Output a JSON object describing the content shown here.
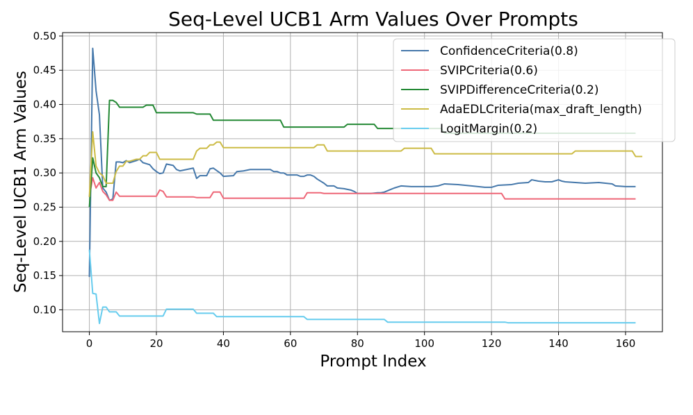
{
  "chart_data": {
    "type": "line",
    "title": "Seq-Level UCB1 Arm Values Over Prompts",
    "xlabel": "Prompt Index",
    "ylabel": "Seq-Level UCB1 Arm Values",
    "xlim": [
      -8,
      171
    ],
    "ylim": [
      0.068,
      0.505
    ],
    "xticks": [
      0,
      20,
      40,
      60,
      80,
      100,
      120,
      140,
      160
    ],
    "yticks": [
      0.1,
      0.15,
      0.2,
      0.25,
      0.3,
      0.35,
      0.4,
      0.45,
      0.5
    ],
    "grid": true,
    "legend_position": "top-right",
    "series": [
      {
        "name": "ConfidenceCriteria(0.8)",
        "color": "#4477aa",
        "points": [
          [
            0,
            0.148
          ],
          [
            1,
            0.482
          ],
          [
            2,
            0.42
          ],
          [
            3,
            0.385
          ],
          [
            4,
            0.278
          ],
          [
            5,
            0.272
          ],
          [
            6,
            0.26
          ],
          [
            7,
            0.262
          ],
          [
            8,
            0.316
          ],
          [
            9,
            0.316
          ],
          [
            10,
            0.315
          ],
          [
            11,
            0.318
          ],
          [
            12,
            0.315
          ],
          [
            14,
            0.318
          ],
          [
            15,
            0.32
          ],
          [
            16,
            0.315
          ],
          [
            18,
            0.312
          ],
          [
            19,
            0.306
          ],
          [
            20,
            0.302
          ],
          [
            21,
            0.299
          ],
          [
            22,
            0.3
          ],
          [
            23,
            0.313
          ],
          [
            25,
            0.311
          ],
          [
            26,
            0.305
          ],
          [
            27,
            0.303
          ],
          [
            29,
            0.305
          ],
          [
            31,
            0.307
          ],
          [
            32,
            0.292
          ],
          [
            33,
            0.296
          ],
          [
            35,
            0.296
          ],
          [
            36,
            0.306
          ],
          [
            37,
            0.307
          ],
          [
            39,
            0.3
          ],
          [
            40,
            0.295
          ],
          [
            43,
            0.296
          ],
          [
            44,
            0.302
          ],
          [
            46,
            0.303
          ],
          [
            48,
            0.305
          ],
          [
            54,
            0.305
          ],
          [
            55,
            0.302
          ],
          [
            56,
            0.302
          ],
          [
            57,
            0.3
          ],
          [
            58,
            0.3
          ],
          [
            59,
            0.297
          ],
          [
            62,
            0.297
          ],
          [
            63,
            0.295
          ],
          [
            64,
            0.295
          ],
          [
            65,
            0.297
          ],
          [
            66,
            0.297
          ],
          [
            67,
            0.295
          ],
          [
            68,
            0.291
          ],
          [
            70,
            0.285
          ],
          [
            71,
            0.281
          ],
          [
            73,
            0.281
          ],
          [
            74,
            0.278
          ],
          [
            76,
            0.277
          ],
          [
            78,
            0.275
          ],
          [
            79,
            0.273
          ],
          [
            80,
            0.27
          ],
          [
            84,
            0.27
          ],
          [
            86,
            0.271
          ],
          [
            87,
            0.271
          ],
          [
            88,
            0.272
          ],
          [
            90,
            0.276
          ],
          [
            91,
            0.278
          ],
          [
            93,
            0.281
          ],
          [
            96,
            0.28
          ],
          [
            98,
            0.28
          ],
          [
            102,
            0.28
          ],
          [
            104,
            0.281
          ],
          [
            106,
            0.284
          ],
          [
            110,
            0.283
          ],
          [
            114,
            0.281
          ],
          [
            118,
            0.279
          ],
          [
            120,
            0.279
          ],
          [
            122,
            0.282
          ],
          [
            126,
            0.283
          ],
          [
            128,
            0.285
          ],
          [
            131,
            0.286
          ],
          [
            132,
            0.29
          ],
          [
            134,
            0.288
          ],
          [
            136,
            0.287
          ],
          [
            138,
            0.287
          ],
          [
            140,
            0.29
          ],
          [
            141,
            0.288
          ],
          [
            142,
            0.287
          ],
          [
            148,
            0.285
          ],
          [
            152,
            0.286
          ],
          [
            156,
            0.284
          ],
          [
            157,
            0.281
          ],
          [
            160,
            0.28
          ],
          [
            163,
            0.28
          ]
        ]
      },
      {
        "name": "SVIPCriteria(0.6)",
        "color": "#ee6677",
        "points": [
          [
            0,
            0.265
          ],
          [
            1,
            0.293
          ],
          [
            2,
            0.278
          ],
          [
            3,
            0.286
          ],
          [
            4,
            0.273
          ],
          [
            5,
            0.268
          ],
          [
            6,
            0.26
          ],
          [
            7,
            0.26
          ],
          [
            8,
            0.272
          ],
          [
            9,
            0.266
          ],
          [
            20,
            0.266
          ],
          [
            21,
            0.275
          ],
          [
            22,
            0.273
          ],
          [
            23,
            0.265
          ],
          [
            31,
            0.265
          ],
          [
            32,
            0.264
          ],
          [
            36,
            0.264
          ],
          [
            37,
            0.272
          ],
          [
            39,
            0.272
          ],
          [
            40,
            0.263
          ],
          [
            64,
            0.263
          ],
          [
            65,
            0.271
          ],
          [
            69,
            0.271
          ],
          [
            70,
            0.27
          ],
          [
            123,
            0.27
          ],
          [
            124,
            0.262
          ],
          [
            163,
            0.262
          ]
        ]
      },
      {
        "name": "SVIPDifferenceCriteria(0.2)",
        "color": "#228833",
        "points": [
          [
            0,
            0.25
          ],
          [
            1,
            0.322
          ],
          [
            2,
            0.3
          ],
          [
            3,
            0.293
          ],
          [
            4,
            0.28
          ],
          [
            5,
            0.28
          ],
          [
            6,
            0.406
          ],
          [
            7,
            0.406
          ],
          [
            8,
            0.403
          ],
          [
            9,
            0.396
          ],
          [
            10,
            0.396
          ],
          [
            16,
            0.396
          ],
          [
            17,
            0.399
          ],
          [
            19,
            0.399
          ],
          [
            20,
            0.388
          ],
          [
            31,
            0.388
          ],
          [
            32,
            0.386
          ],
          [
            36,
            0.386
          ],
          [
            37,
            0.377
          ],
          [
            57,
            0.377
          ],
          [
            58,
            0.367
          ],
          [
            76,
            0.367
          ],
          [
            77,
            0.371
          ],
          [
            85,
            0.371
          ],
          [
            86,
            0.365
          ],
          [
            105,
            0.365
          ],
          [
            106,
            0.358
          ],
          [
            163,
            0.358
          ]
        ]
      },
      {
        "name": "AdaEDLCriteria(max_draft_length)",
        "color": "#ccbb44",
        "points": [
          [
            0,
            0.265
          ],
          [
            1,
            0.36
          ],
          [
            2,
            0.31
          ],
          [
            3,
            0.3
          ],
          [
            4,
            0.296
          ],
          [
            5,
            0.285
          ],
          [
            6,
            0.285
          ],
          [
            7,
            0.285
          ],
          [
            8,
            0.302
          ],
          [
            9,
            0.31
          ],
          [
            10,
            0.31
          ],
          [
            11,
            0.317
          ],
          [
            12,
            0.317
          ],
          [
            14,
            0.32
          ],
          [
            15,
            0.32
          ],
          [
            16,
            0.325
          ],
          [
            17,
            0.325
          ],
          [
            18,
            0.33
          ],
          [
            20,
            0.33
          ],
          [
            21,
            0.32
          ],
          [
            31,
            0.32
          ],
          [
            32,
            0.332
          ],
          [
            33,
            0.336
          ],
          [
            35,
            0.336
          ],
          [
            36,
            0.341
          ],
          [
            37,
            0.341
          ],
          [
            38,
            0.345
          ],
          [
            39,
            0.345
          ],
          [
            40,
            0.337
          ],
          [
            67,
            0.337
          ],
          [
            68,
            0.341
          ],
          [
            70,
            0.341
          ],
          [
            71,
            0.332
          ],
          [
            93,
            0.332
          ],
          [
            94,
            0.336
          ],
          [
            102,
            0.336
          ],
          [
            103,
            0.328
          ],
          [
            144,
            0.328
          ],
          [
            145,
            0.332
          ],
          [
            162,
            0.332
          ],
          [
            163,
            0.324
          ],
          [
            165,
            0.324
          ]
        ]
      },
      {
        "name": "LogitMargin(0.2)",
        "color": "#66ccee",
        "points": [
          [
            0,
            0.188
          ],
          [
            1,
            0.124
          ],
          [
            2,
            0.123
          ],
          [
            3,
            0.08
          ],
          [
            4,
            0.104
          ],
          [
            5,
            0.104
          ],
          [
            6,
            0.097
          ],
          [
            8,
            0.097
          ],
          [
            9,
            0.091
          ],
          [
            22,
            0.091
          ],
          [
            23,
            0.101
          ],
          [
            31,
            0.101
          ],
          [
            32,
            0.095
          ],
          [
            37,
            0.095
          ],
          [
            38,
            0.09
          ],
          [
            64,
            0.09
          ],
          [
            65,
            0.086
          ],
          [
            88,
            0.086
          ],
          [
            89,
            0.082
          ],
          [
            124,
            0.082
          ],
          [
            125,
            0.081
          ],
          [
            163,
            0.081
          ]
        ]
      }
    ]
  }
}
